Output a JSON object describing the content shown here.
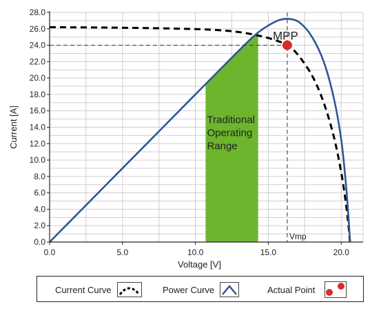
{
  "chart_data": {
    "type": "line",
    "title": "",
    "xlabel": "Voltage [V]",
    "ylabel": "Current [A]",
    "xlim": [
      0,
      21.5
    ],
    "ylim": [
      0,
      28
    ],
    "grid": true,
    "x_ticks": [
      "0.0",
      "5.0",
      "10.0",
      "15.0",
      "20.0"
    ],
    "y_ticks": [
      "0.0",
      "2.0",
      "4.0",
      "6.0",
      "8.0",
      "10.0",
      "12.0",
      "14.0",
      "16.0",
      "18.0",
      "20.0",
      "22.0",
      "24.0",
      "26.0",
      "28.0"
    ],
    "series": [
      {
        "name": "Current Curve",
        "style": "dashed",
        "color": "#000000",
        "points": [
          [
            0,
            26.2
          ],
          [
            4,
            26.15
          ],
          [
            8,
            26.05
          ],
          [
            11,
            25.9
          ],
          [
            13,
            25.6
          ],
          [
            14.5,
            25.1
          ],
          [
            15.5,
            24.6
          ],
          [
            16.3,
            24.0
          ],
          [
            17,
            22.9
          ],
          [
            18,
            20.3
          ],
          [
            18.8,
            17.0
          ],
          [
            19.5,
            12.8
          ],
          [
            20.0,
            8.5
          ],
          [
            20.3,
            5.0
          ],
          [
            20.5,
            2.0
          ],
          [
            20.6,
            0
          ]
        ]
      },
      {
        "name": "Power Curve",
        "style": "solid",
        "color": "#2e5597",
        "points": [
          [
            0,
            0
          ],
          [
            2,
            3.6
          ],
          [
            4,
            7.2
          ],
          [
            6,
            10.8
          ],
          [
            8,
            14.4
          ],
          [
            10,
            18.0
          ],
          [
            12,
            21.6
          ],
          [
            14,
            25.1
          ],
          [
            15,
            26.4
          ],
          [
            15.8,
            27.1
          ],
          [
            16.5,
            27.2
          ],
          [
            17.2,
            26.7
          ],
          [
            18,
            25.0
          ],
          [
            18.8,
            22.0
          ],
          [
            19.5,
            17.5
          ],
          [
            20,
            12.5
          ],
          [
            20.3,
            7.5
          ],
          [
            20.5,
            3.0
          ],
          [
            20.6,
            0
          ]
        ]
      }
    ],
    "operating_range": {
      "x0": 10.7,
      "x1": 14.3,
      "color": "#6cb52d",
      "label_lines": [
        "Traditional",
        "Operating",
        "Range"
      ]
    },
    "mpp": {
      "x": 16.3,
      "y": 24.0,
      "label": "MPP",
      "vline_label": "Vmp",
      "color": "#d92b2b"
    },
    "legend": {
      "position": "bottom",
      "items": [
        {
          "label": "Current Curve",
          "icon": "dashed-arch-icon"
        },
        {
          "label": "Power Curve",
          "icon": "solid-arch-icon"
        },
        {
          "label": "Actual Point",
          "icon": "red-point-icon"
        }
      ]
    }
  }
}
